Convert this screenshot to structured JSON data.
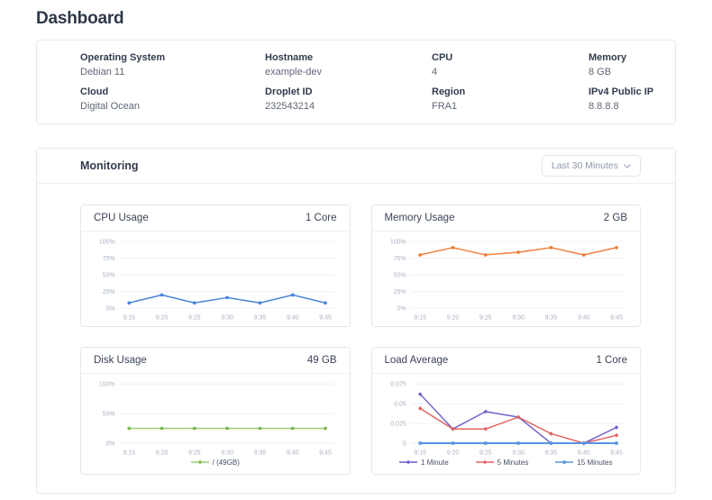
{
  "page": {
    "title": "Dashboard"
  },
  "info_card": {
    "fields": [
      {
        "label": "Operating System",
        "value": "Debian 11"
      },
      {
        "label": "Hostname",
        "value": "example-dev"
      },
      {
        "label": "CPU",
        "value": "4"
      },
      {
        "label": "Memory",
        "value": "8 GB"
      },
      {
        "label": "Cloud",
        "value": "Digital Ocean"
      },
      {
        "label": "Droplet ID",
        "value": "232543214"
      },
      {
        "label": "Region",
        "value": "FRA1"
      },
      {
        "label": "IPv4 Public IP",
        "value": "8.8.8.8"
      }
    ]
  },
  "monitoring": {
    "title": "Monitoring",
    "range_selector": {
      "label": "Last 30 Minutes",
      "icon": "chevron-down"
    }
  },
  "chart_data": [
    {
      "type": "line",
      "title": "CPU Usage",
      "capacity": "1 Core",
      "categories": [
        "9:15",
        "9:20",
        "9:25",
        "9:30",
        "9:35",
        "9:40",
        "9:45"
      ],
      "ylim": [
        0,
        100
      ],
      "yticks": [
        0,
        25,
        50,
        75,
        100
      ],
      "ytick_suffix": "%",
      "grid": true,
      "legend": false,
      "series": [
        {
          "name": "CPU",
          "color": "#4a84d8",
          "marker": "circle",
          "values": [
            8,
            20,
            8,
            16,
            8,
            20,
            8
          ]
        }
      ]
    },
    {
      "type": "line",
      "title": "Memory Usage",
      "capacity": "2 GB",
      "categories": [
        "9:15",
        "9:20",
        "9:25",
        "9:30",
        "9:35",
        "9:40",
        "9:45"
      ],
      "ylim": [
        0,
        100
      ],
      "yticks": [
        0,
        25,
        50,
        75,
        100
      ],
      "ytick_suffix": "%",
      "grid": true,
      "legend": false,
      "series": [
        {
          "name": "Memory",
          "color": "#ee7d36",
          "marker": "circle",
          "values": [
            80,
            91,
            80,
            84,
            91,
            80,
            91
          ]
        }
      ]
    },
    {
      "type": "line",
      "title": "Disk Usage",
      "capacity": "49 GB",
      "categories": [
        "9:15",
        "9:20",
        "9:25",
        "9:30",
        "9:35",
        "9:40",
        "9:45"
      ],
      "ylim": [
        0,
        100
      ],
      "yticks": [
        0,
        50,
        100
      ],
      "ytick_suffix": "%",
      "grid": true,
      "legend": true,
      "series": [
        {
          "name": "/ (49GB)",
          "color": "#9ccb72",
          "marker_color": "#7db94e",
          "marker": "circle",
          "values": [
            25,
            25,
            25,
            25,
            25,
            25,
            25
          ]
        }
      ]
    },
    {
      "type": "line",
      "title": "Load Average",
      "capacity": "1 Core",
      "categories": [
        "9:15",
        "9:20",
        "9:25",
        "9:30",
        "9:35",
        "9:40",
        "9:45"
      ],
      "ylim": [
        0,
        0.075
      ],
      "yticks": [
        0,
        0.025,
        0.05,
        0.075
      ],
      "ytick_suffix": "",
      "grid": true,
      "legend": true,
      "series": [
        {
          "name": "1 Minute",
          "color": "#6f5fc8",
          "marker": "diamond",
          "values": [
            0.062,
            0.018,
            0.04,
            0.033,
            0,
            0,
            0.02
          ]
        },
        {
          "name": "5 Minutes",
          "color": "#e06060",
          "marker": "diamond",
          "values": [
            0.044,
            0.018,
            0.018,
            0.033,
            0.012,
            0,
            0.01
          ]
        },
        {
          "name": "15 Minutes",
          "color": "#5b96e0",
          "marker": "square",
          "width": 2,
          "values": [
            0,
            0,
            0,
            0,
            0,
            0,
            0
          ]
        }
      ]
    }
  ]
}
